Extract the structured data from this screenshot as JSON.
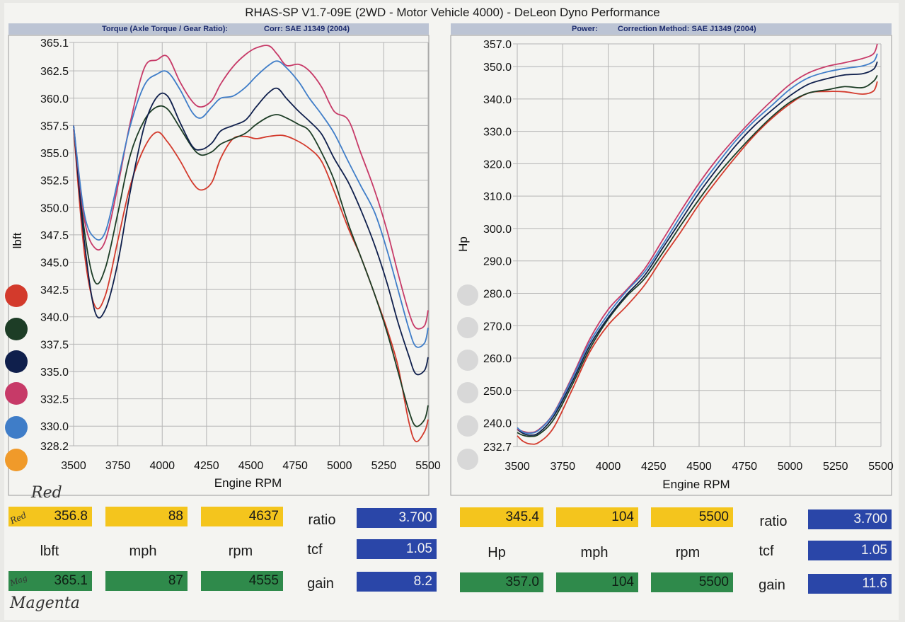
{
  "header": {
    "title": "RHAS-SP V1.7-09E  (2WD - Motor Vehicle 4000) - DeLeon Dyno Performance",
    "left_sub_a": "Torque (Axle Torque / Gear Ratio):",
    "left_sub_b": "Corr: SAE J1349 (2004)",
    "right_sub_a": "Power:",
    "right_sub_b": "Correction Method: SAE J1349 (2004)"
  },
  "colors": {
    "red": "#d33a2c",
    "dark_green": "#1d3d26",
    "navy": "#0f1f4c",
    "magenta": "#c73a68",
    "light_blue": "#3f7dc8",
    "orange": "#f09a2a",
    "yellow_box": "#f4c51d",
    "green_box": "#2f8a4b",
    "blue_box": "#2a46a8"
  },
  "chart_data": [
    {
      "type": "line",
      "title": "",
      "xlabel": "Engine RPM",
      "ylabel": "lbft",
      "xlim": [
        3500,
        5500
      ],
      "ylim": [
        328.2,
        365.1
      ],
      "x_ticks": [
        "3500",
        "3750",
        "4000",
        "4250",
        "4500",
        "4750",
        "5000",
        "5250",
        "5500"
      ],
      "y_ticks": [
        "365.1",
        "362.5",
        "360.0",
        "357.5",
        "355.0",
        "352.5",
        "350.0",
        "347.5",
        "345.0",
        "342.5",
        "340.0",
        "337.5",
        "335.0",
        "332.5",
        "330.0",
        "328.2"
      ],
      "grid": true,
      "series": [
        {
          "color": "red",
          "x": [
            3500,
            3560,
            3620,
            3680,
            3750,
            3820,
            3900,
            3970,
            4030,
            4100,
            4170,
            4220,
            4280,
            4330,
            4400,
            4470,
            4530,
            4600,
            4680,
            4750,
            4830,
            4900,
            4970,
            5050,
            5120,
            5200,
            5270,
            5330,
            5390,
            5430,
            5480,
            5500
          ],
          "y": [
            357.2,
            346,
            341,
            342,
            347,
            352,
            355.5,
            356.9,
            356,
            354.3,
            352.3,
            351.6,
            352.3,
            354.5,
            356.3,
            356.5,
            356.3,
            356.5,
            356.6,
            356.2,
            355.4,
            354.2,
            351.5,
            348.1,
            345.5,
            342,
            338.8,
            335.5,
            330.5,
            328.6,
            329.5,
            330.6
          ]
        },
        {
          "color": "dark_green",
          "x": [
            3500,
            3560,
            3620,
            3680,
            3750,
            3820,
            3900,
            3970,
            4030,
            4100,
            4170,
            4220,
            4280,
            4330,
            4400,
            4470,
            4530,
            4600,
            4650,
            4700,
            4770,
            4830,
            4900,
            4970,
            5050,
            5120,
            5200,
            5270,
            5330,
            5390,
            5430,
            5480,
            5500
          ],
          "y": [
            357.5,
            348,
            343.2,
            344.5,
            349.5,
            354.8,
            358,
            359.2,
            359,
            357.3,
            355.5,
            354.8,
            355.1,
            355.8,
            356.3,
            356.8,
            357.6,
            358.3,
            358.5,
            358.2,
            357.6,
            357,
            355,
            352.5,
            348.5,
            345.5,
            342,
            338.5,
            335,
            331.5,
            330,
            330.6,
            331.9
          ]
        },
        {
          "color": "navy",
          "x": [
            3500,
            3560,
            3620,
            3680,
            3750,
            3820,
            3900,
            3970,
            4030,
            4100,
            4170,
            4220,
            4280,
            4330,
            4400,
            4470,
            4530,
            4600,
            4650,
            4700,
            4770,
            4830,
            4900,
            4970,
            5050,
            5120,
            5200,
            5270,
            5330,
            5390,
            5430,
            5480,
            5500
          ],
          "y": [
            357.5,
            347,
            340.5,
            340.7,
            345,
            351.5,
            357.5,
            360.1,
            360.2,
            357.8,
            355.6,
            355.3,
            355.9,
            357,
            357.5,
            358,
            359.2,
            360.5,
            360.9,
            360,
            358.8,
            357.9,
            356.7,
            354.5,
            352.3,
            349.8,
            346.5,
            343,
            339.5,
            336.5,
            334.8,
            335.1,
            336.3
          ]
        },
        {
          "color": "magenta",
          "x": [
            3500,
            3560,
            3620,
            3680,
            3750,
            3820,
            3900,
            3970,
            4030,
            4100,
            4170,
            4220,
            4280,
            4330,
            4400,
            4470,
            4530,
            4600,
            4650,
            4700,
            4770,
            4830,
            4900,
            4970,
            5050,
            5120,
            5200,
            5270,
            5330,
            5390,
            5430,
            5480,
            5500
          ],
          "y": [
            357.5,
            349,
            346.3,
            347,
            352,
            357.8,
            362.8,
            363.5,
            363.8,
            361.5,
            359.7,
            359.2,
            359.8,
            361.3,
            362.9,
            364,
            364.6,
            364.8,
            364,
            363,
            363.1,
            362.5,
            361,
            358.8,
            358,
            355,
            351.5,
            347.8,
            344,
            340.5,
            339,
            339.2,
            340.6
          ]
        },
        {
          "color": "light_blue",
          "x": [
            3500,
            3560,
            3620,
            3680,
            3750,
            3820,
            3900,
            3970,
            4030,
            4100,
            4170,
            4220,
            4280,
            4330,
            4400,
            4470,
            4530,
            4600,
            4650,
            4700,
            4770,
            4830,
            4900,
            4970,
            5050,
            5120,
            5200,
            5270,
            5330,
            5390,
            5430,
            5480,
            5500
          ],
          "y": [
            357.5,
            349.5,
            347.2,
            347.8,
            352.5,
            357.5,
            361.2,
            362.2,
            362.4,
            360.8,
            358.7,
            358.2,
            359.2,
            360,
            360.2,
            361,
            362,
            363,
            363.4,
            362.8,
            361.5,
            360,
            358.5,
            356.8,
            354.2,
            352,
            349.5,
            346,
            342.5,
            339,
            337.3,
            337.6,
            339
          ]
        }
      ]
    },
    {
      "type": "line",
      "title": "",
      "xlabel": "Engine RPM",
      "ylabel": "Hp",
      "xlim": [
        3500,
        5500
      ],
      "ylim": [
        232.7,
        357.0
      ],
      "x_ticks": [
        "3500",
        "3750",
        "4000",
        "4250",
        "4500",
        "4750",
        "5000",
        "5250",
        "5500"
      ],
      "y_ticks": [
        "357.0",
        "350.0",
        "340.0",
        "330.0",
        "320.0",
        "310.0",
        "300.0",
        "290.0",
        "280.0",
        "270.0",
        "260.0",
        "250.0",
        "240.0",
        "232.7"
      ],
      "grid": true,
      "series": [
        {
          "color": "red",
          "x": [
            3500,
            3530,
            3570,
            3620,
            3700,
            3800,
            3900,
            4000,
            4100,
            4200,
            4300,
            4400,
            4500,
            4600,
            4700,
            4800,
            4900,
            5000,
            5100,
            5200,
            5300,
            5400,
            5460,
            5480
          ],
          "y": [
            236,
            234.4,
            233.5,
            234,
            238.5,
            250,
            262,
            270.2,
            276,
            282.5,
            291,
            299,
            307.5,
            315,
            322,
            328.5,
            334,
            338.5,
            341.8,
            342.3,
            342.2,
            341.5,
            342.5,
            345.4
          ]
        },
        {
          "color": "dark_green",
          "x": [
            3500,
            3530,
            3570,
            3620,
            3700,
            3800,
            3900,
            4000,
            4100,
            4200,
            4300,
            4400,
            4500,
            4600,
            4700,
            4800,
            4900,
            5000,
            5100,
            5200,
            5300,
            5400,
            5460,
            5480
          ],
          "y": [
            237,
            236.2,
            235.8,
            236.5,
            241,
            251.5,
            263,
            272,
            279,
            284.5,
            292.5,
            301,
            309,
            316.5,
            323,
            329,
            334.5,
            339,
            341.8,
            342.8,
            343.8,
            343.5,
            345.5,
            347.3
          ]
        },
        {
          "color": "navy",
          "x": [
            3500,
            3530,
            3570,
            3620,
            3700,
            3800,
            3900,
            4000,
            4100,
            4200,
            4300,
            4400,
            4500,
            4600,
            4700,
            4800,
            4900,
            5000,
            5100,
            5200,
            5300,
            5400,
            5460,
            5480
          ],
          "y": [
            238,
            236.8,
            236.2,
            237,
            242,
            252.5,
            264,
            272.5,
            279.5,
            285.5,
            294,
            302.5,
            311,
            318.5,
            325.5,
            331.5,
            336.5,
            341,
            344.5,
            346.2,
            347.4,
            347.8,
            349.2,
            351.5
          ]
        },
        {
          "color": "magenta",
          "x": [
            3500,
            3530,
            3570,
            3620,
            3700,
            3800,
            3900,
            4000,
            4100,
            4200,
            4300,
            4400,
            4500,
            4600,
            4700,
            4800,
            4900,
            5000,
            5100,
            5200,
            5300,
            5400,
            5460,
            5480
          ],
          "y": [
            238,
            237.4,
            237,
            238,
            243,
            254,
            266,
            275,
            281,
            287.5,
            296.5,
            305.5,
            314,
            321.5,
            328,
            334,
            339.5,
            344.5,
            348,
            350,
            351.2,
            352.5,
            354,
            357.0
          ]
        },
        {
          "color": "light_blue",
          "x": [
            3500,
            3530,
            3570,
            3620,
            3700,
            3800,
            3900,
            4000,
            4100,
            4200,
            4300,
            4400,
            4500,
            4600,
            4700,
            4800,
            4900,
            5000,
            5100,
            5200,
            5300,
            5400,
            5460,
            5480
          ],
          "y": [
            238.5,
            237.2,
            236.8,
            237.8,
            242.8,
            253.5,
            265,
            273.6,
            280.6,
            286.6,
            295,
            304,
            312.5,
            320,
            327,
            333,
            338,
            343,
            346.5,
            348.3,
            349.4,
            350.2,
            351.6,
            354
          ]
        }
      ]
    }
  ],
  "legend_dots": [
    "red",
    "dark_green",
    "navy",
    "magenta",
    "light_blue",
    "orange"
  ],
  "bottom": {
    "left": {
      "yellow": [
        "356.8",
        "88",
        "4637"
      ],
      "units": [
        "lbft",
        "mph",
        "rpm"
      ],
      "green": [
        "365.1",
        "87",
        "4555"
      ],
      "side_labels": [
        "ratio",
        "tcf",
        "gain"
      ],
      "blue": [
        "3.700",
        "1.05",
        "8.2"
      ]
    },
    "right": {
      "yellow": [
        "345.4",
        "104",
        "5500"
      ],
      "units": [
        "Hp",
        "mph",
        "rpm"
      ],
      "green": [
        "357.0",
        "104",
        "5500"
      ],
      "side_labels": [
        "ratio",
        "tcf",
        "gain"
      ],
      "blue": [
        "3.700",
        "1.05",
        "11.6"
      ]
    }
  },
  "handwriting": {
    "red_label": "Red",
    "red_small": "Red",
    "mag_small": "Mag",
    "magenta_label": "Magenta"
  }
}
